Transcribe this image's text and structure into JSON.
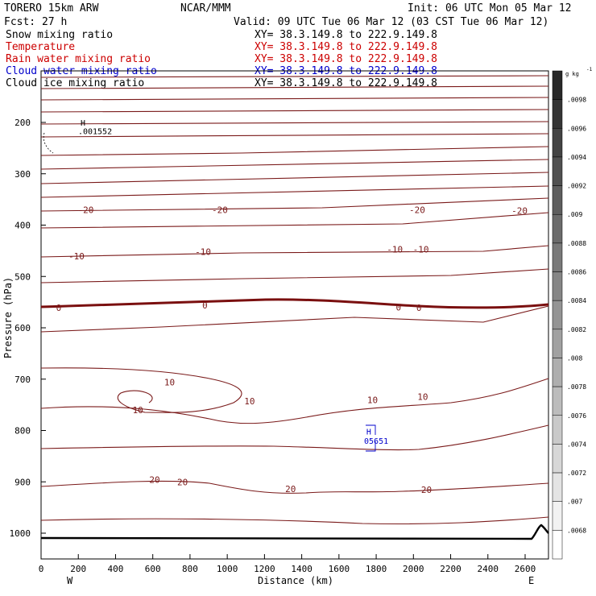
{
  "header": {
    "model": "TORERO  15km ARW",
    "org": "NCAR/MMM",
    "init": "Init: 06 UTC Mon 05 Mar 12",
    "fcst": "Fcst:   27 h",
    "valid": "Valid: 09 UTC Tue 06 Mar 12 (03 CST Tue 06 Mar 12)"
  },
  "fields": [
    {
      "name": "Snow mixing ratio",
      "xy": "XY=  38.3.149.8 to 222.9.149.8",
      "color": "#000000",
      "xy_color": "#000000"
    },
    {
      "name": "Temperature",
      "xy": "XY=  38.3.149.8 to 222.9.149.8",
      "color": "#cc0000",
      "xy_color": "#cc0000"
    },
    {
      "name": "Rain water mixing ratio",
      "xy": "XY=  38.3.149.8 to 222.9.149.8",
      "color": "#cc0000",
      "xy_color": "#cc0000"
    },
    {
      "name": "Cloud water mixing ratio",
      "xy": "XY=  38.3.149.8 to 222.9.149.8",
      "color": "#0000cc",
      "xy_color": "#0000cc"
    },
    {
      "name": "Cloud ice mixing ratio",
      "xy": "XY=  38.3.149.8 to 222.9.149.8",
      "color": "#000000",
      "xy_color": "#000000"
    }
  ],
  "chart_data": {
    "type": "contour",
    "xlabel": "Distance (km)",
    "ylabel": "Pressure (hPa)",
    "xlim": [
      0,
      2750
    ],
    "ylim": [
      1050,
      100
    ],
    "x_ticks": [
      0,
      200,
      400,
      600,
      800,
      1000,
      1200,
      1400,
      1600,
      1800,
      2000,
      2200,
      2400,
      2600
    ],
    "y_ticks": [
      200,
      300,
      400,
      500,
      600,
      700,
      800,
      900,
      1000
    ],
    "x_end_labels": {
      "left": "W",
      "right": "E"
    },
    "colorbar": {
      "unit": "g kg",
      "unit_exp": "-1",
      "labels": [
        ".0098",
        ".0096",
        ".0094",
        ".0092",
        ".009",
        ".0088",
        ".0086",
        ".0084",
        ".0082",
        ".008",
        ".0078",
        ".0076",
        ".0074",
        ".0072",
        ".007",
        ".0068"
      ]
    },
    "temperature_labels": [
      {
        "text": "-20",
        "x": 240,
        "p": 370
      },
      {
        "text": "-20",
        "x": 960,
        "p": 370
      },
      {
        "text": "-20",
        "x": 2020,
        "p": 370
      },
      {
        "text": "-20",
        "x": 2570,
        "p": 372
      },
      {
        "text": "-10",
        "x": 190,
        "p": 460
      },
      {
        "text": "-10",
        "x": 870,
        "p": 452
      },
      {
        "text": "-10",
        "x": 1900,
        "p": 447
      },
      {
        "text": "-10",
        "x": 2040,
        "p": 447
      },
      {
        "text": "0",
        "x": 95,
        "p": 561
      },
      {
        "text": "0",
        "x": 880,
        "p": 556
      },
      {
        "text": "0",
        "x": 1920,
        "p": 560
      },
      {
        "text": "0",
        "x": 2030,
        "p": 561
      },
      {
        "text": "10",
        "x": 690,
        "p": 706
      },
      {
        "text": "10",
        "x": 520,
        "p": 760
      },
      {
        "text": "10",
        "x": 1120,
        "p": 743
      },
      {
        "text": "10",
        "x": 1780,
        "p": 740
      },
      {
        "text": "10",
        "x": 2050,
        "p": 734
      },
      {
        "text": "20",
        "x": 610,
        "p": 896
      },
      {
        "text": "20",
        "x": 760,
        "p": 900
      },
      {
        "text": "20",
        "x": 1340,
        "p": 914
      },
      {
        "text": "20",
        "x": 2070,
        "p": 915
      }
    ],
    "annotations": [
      {
        "text": "H",
        "x": 225,
        "p": 206,
        "color": "#000000"
      },
      {
        "text": ".001552",
        "x": 290,
        "p": 223,
        "color": "#000000"
      },
      {
        "text": "H",
        "x": 1760,
        "p": 808,
        "color": "#0000cc"
      },
      {
        "text": "05651",
        "x": 1800,
        "p": 826,
        "color": "#0000cc"
      }
    ]
  }
}
